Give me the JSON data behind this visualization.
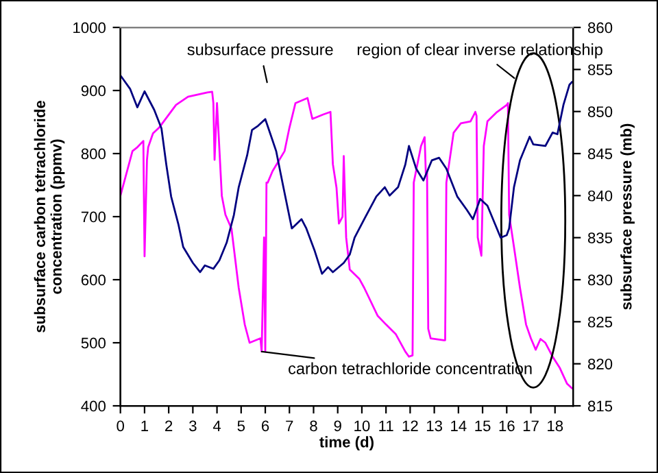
{
  "chart_data": {
    "type": "line",
    "xlabel": "time (d)",
    "ylabel": "subsurface carbon tetrachloride\nconcentration (ppmv)",
    "y2label": "subsurface pressure (mb)",
    "xlim": [
      0,
      18.75
    ],
    "xticks": [
      0,
      1,
      2,
      3,
      4,
      5,
      6,
      7,
      8,
      9,
      10,
      11,
      12,
      13,
      14,
      15,
      16,
      17,
      18
    ],
    "ylim": [
      400,
      1000
    ],
    "yticks": [
      400,
      500,
      600,
      700,
      800,
      900,
      1000
    ],
    "y2lim": [
      815,
      860
    ],
    "y2ticks": [
      815,
      820,
      825,
      830,
      835,
      840,
      845,
      850,
      855,
      860
    ],
    "grid": false,
    "legend": false,
    "marker": "none",
    "line_style": "solid",
    "series": [
      {
        "color": "#ff00ff",
        "x": [
          0,
          0.5,
          0.7,
          0.95,
          1.0,
          1.1,
          1.15,
          1.35,
          1.6,
          2.3,
          2.8,
          3.6,
          3.8,
          3.85,
          3.9,
          4.0,
          4.2,
          4.35,
          4.6,
          4.9,
          5.15,
          5.35,
          5.8,
          5.85,
          5.95,
          6.0,
          6.05,
          6.1,
          6.3,
          6.8,
          7.0,
          7.25,
          7.75,
          7.95,
          8.4,
          8.7,
          8.8,
          8.95,
          9.05,
          9.2,
          9.25,
          9.35,
          9.5,
          9.9,
          10.1,
          10.65,
          11.0,
          11.4,
          11.8,
          11.95,
          12.1,
          12.15,
          12.45,
          12.6,
          12.65,
          12.7,
          12.75,
          12.85,
          13.4,
          13.45,
          13.5,
          13.8,
          14.1,
          14.5,
          14.7,
          14.75,
          14.8,
          14.95,
          15.05,
          15.2,
          15.6,
          16.0,
          16.05,
          16.1,
          16.3,
          16.55,
          16.8,
          17.0,
          17.2,
          17.4,
          17.6,
          17.9,
          18.2,
          18.5,
          18.7
        ],
        "values": [
          733,
          804,
          810,
          820,
          637,
          790,
          810,
          832,
          841,
          877,
          890,
          897,
          898,
          880,
          790,
          880,
          733,
          703,
          681,
          587,
          529,
          500,
          507,
          486,
          667,
          486,
          754,
          754,
          772,
          804,
          841,
          880,
          888,
          855,
          862,
          866,
          783,
          746,
          689,
          700,
          796,
          667,
          616,
          601,
          587,
          543,
          529,
          514,
          486,
          478,
          480,
          754,
          812,
          826,
          768,
          770,
          522,
          507,
          504,
          504,
          754,
          833,
          848,
          851,
          866,
          860,
          667,
          638,
          812,
          851,
          866,
          877,
          880,
          703,
          652,
          587,
          529,
          507,
          489,
          506,
          500,
          478,
          460,
          435,
          428
        ]
      },
      {
        "color": "#000080",
        "axis": "y2",
        "x": [
          0,
          0.4,
          0.7,
          1.0,
          1.4,
          1.7,
          1.9,
          2.1,
          2.4,
          2.6,
          3.0,
          3.3,
          3.5,
          3.85,
          4.1,
          4.4,
          4.7,
          4.9,
          5.25,
          5.45,
          5.7,
          6.0,
          6.25,
          6.45,
          6.75,
          7.1,
          7.5,
          7.7,
          8.05,
          8.35,
          8.6,
          8.8,
          9.25,
          9.5,
          9.7,
          10.1,
          10.6,
          10.95,
          11.15,
          11.5,
          11.8,
          11.95,
          12.25,
          12.55,
          12.9,
          13.2,
          13.5,
          13.95,
          14.35,
          14.6,
          14.9,
          15.2,
          15.75,
          16.0,
          16.1,
          16.3,
          16.55,
          16.95,
          17.1,
          17.6,
          17.9,
          18.1,
          18.35,
          18.6,
          18.7
        ],
        "values": [
          854.3,
          852.7,
          850.5,
          852.4,
          850.2,
          848,
          843.7,
          839.9,
          836.6,
          833.9,
          832,
          830.9,
          831.7,
          831.3,
          832.3,
          834.4,
          837.7,
          841,
          844.8,
          847.8,
          848.3,
          849.1,
          847,
          845.3,
          841,
          836.1,
          837.2,
          836.1,
          833.4,
          830.7,
          831.5,
          830.9,
          832,
          833,
          835,
          837.2,
          839.9,
          841,
          840,
          841,
          843.7,
          845.9,
          843.2,
          841.8,
          844.2,
          844.5,
          843.2,
          839.9,
          838.3,
          837.2,
          839.6,
          838.8,
          835,
          835.3,
          836.1,
          841,
          844.2,
          847,
          846.1,
          845.9,
          847.5,
          847.3,
          850.8,
          853.2,
          853.5
        ]
      }
    ],
    "annotations": [
      "subsurface pressure",
      "region of clear inverse relationship",
      {
        "text": "carbon tetrachloride concentration",
        "x": 5.85,
        "y": 486
      }
    ]
  }
}
